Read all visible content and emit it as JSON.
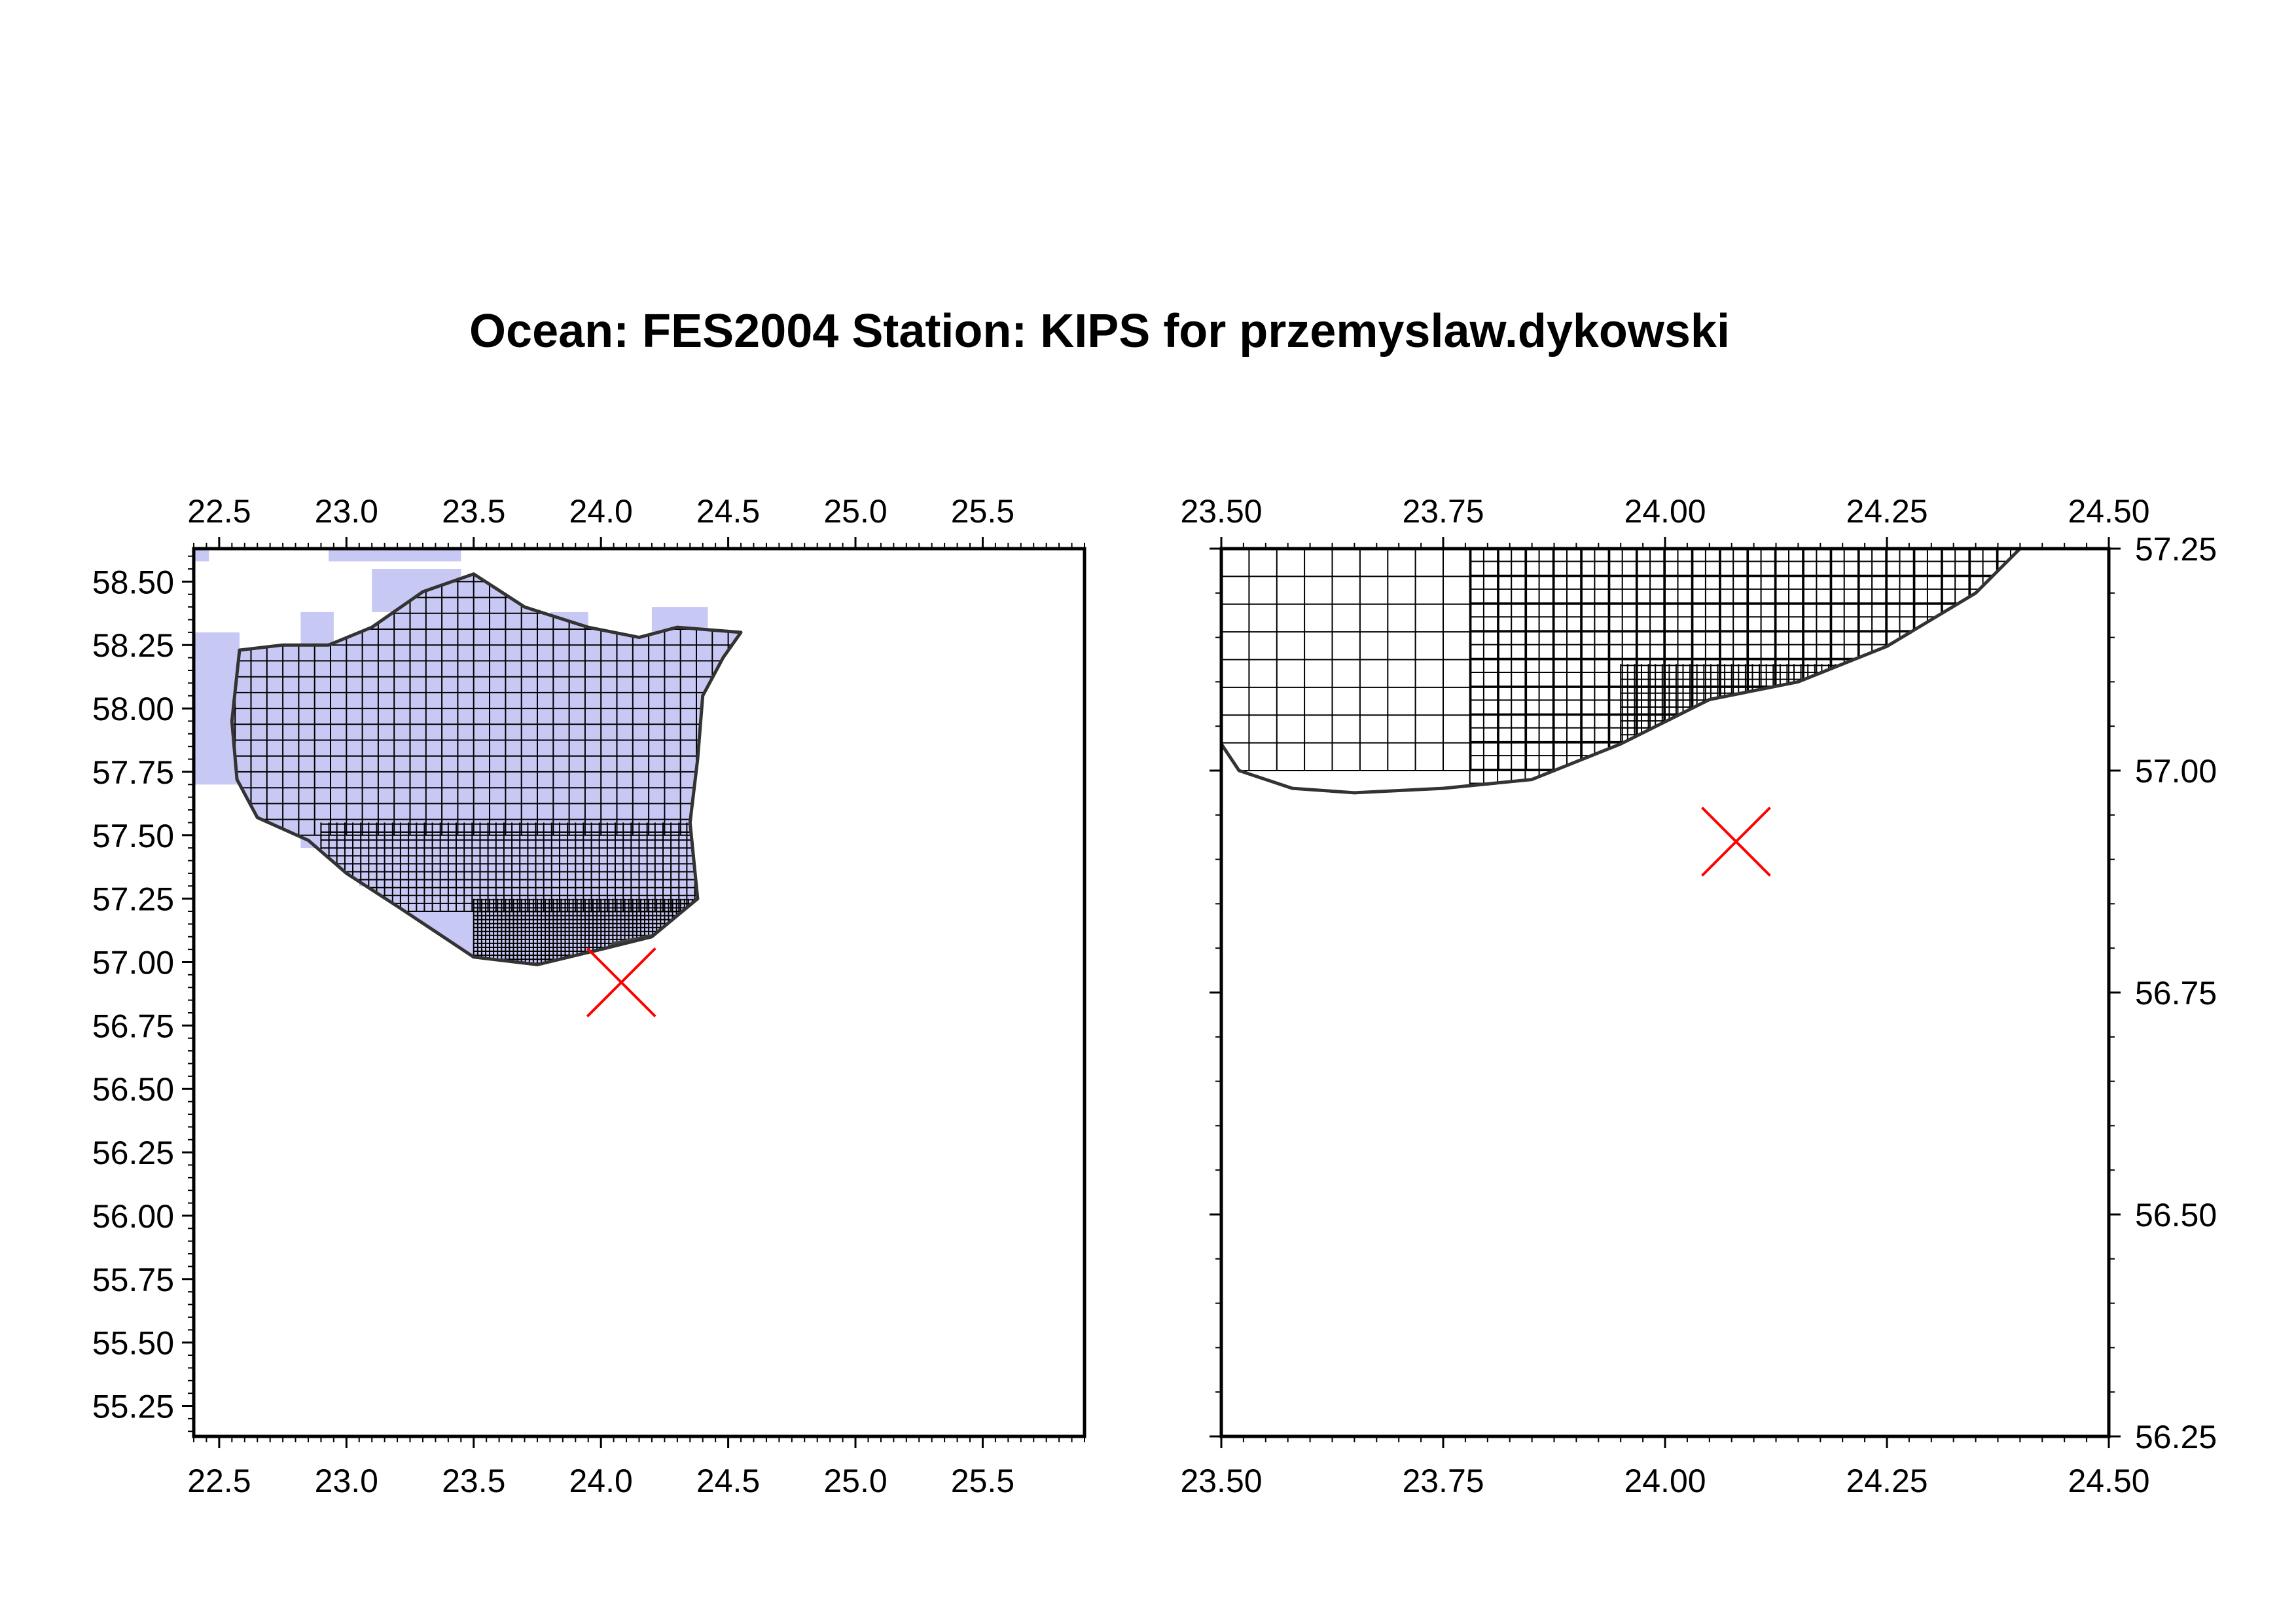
{
  "title": "Ocean: FES2004  Station: KIPS  for przemyslaw.dykowski",
  "colors": {
    "overview_fill": "#c8c8f5",
    "grid_line": "#000000",
    "coast_line": "#333333",
    "station_marker": "#ff0000",
    "dense_fill": "#444444"
  },
  "station": {
    "name": "KIPS",
    "lon": 24.08,
    "lat": 56.92,
    "marker": "x-cross"
  },
  "maps": [
    {
      "id": "overview",
      "xlim": [
        22.4,
        25.9
      ],
      "ylim": [
        55.13,
        58.63
      ],
      "x_ticks": [
        "22.5",
        "23.0",
        "23.5",
        "24.0",
        "24.5",
        "25.0",
        "25.5"
      ],
      "y_ticks": [
        "58.50",
        "58.25",
        "58.00",
        "57.75",
        "57.50",
        "57.25",
        "57.00",
        "56.75",
        "56.50",
        "56.25",
        "56.00",
        "55.75",
        "55.50",
        "55.25"
      ],
      "x_axes": "top-bottom",
      "y_axis": "left"
    },
    {
      "id": "zoom",
      "xlim": [
        23.5,
        24.5
      ],
      "ylim": [
        56.25,
        57.25
      ],
      "x_ticks": [
        "23.50",
        "23.75",
        "24.00",
        "24.25",
        "24.50"
      ],
      "y_ticks": [
        "57.25",
        "57.00",
        "56.75",
        "56.50",
        "56.25"
      ],
      "x_axes": "top-bottom",
      "y_axis": "right"
    }
  ]
}
